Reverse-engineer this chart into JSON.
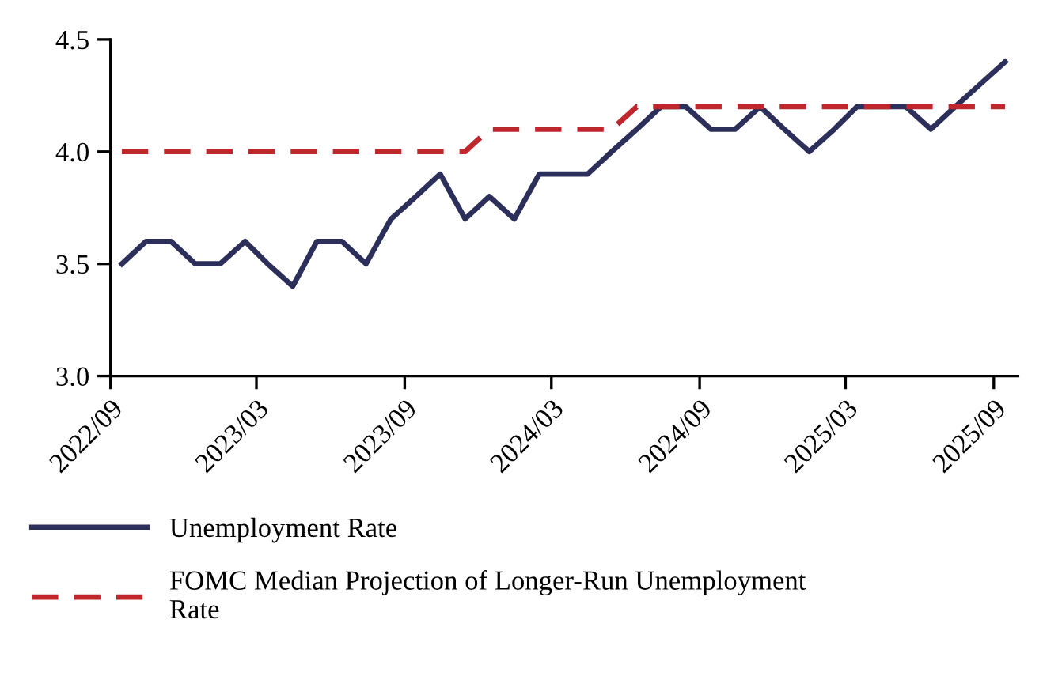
{
  "chart_data": {
    "type": "line",
    "x": [
      "2022-09-15",
      "2022-10-15",
      "2022-11-15",
      "2022-12-15",
      "2023-01-15",
      "2023-02-15",
      "2023-03-15",
      "2023-04-15",
      "2023-05-15",
      "2023-06-15",
      "2023-07-15",
      "2023-08-15",
      "2023-09-15",
      "2023-10-15",
      "2023-11-15",
      "2023-12-15",
      "2024-01-15",
      "2024-02-15",
      "2024-03-15",
      "2024-04-15",
      "2024-05-15",
      "2024-06-15",
      "2024-07-15",
      "2024-08-15",
      "2024-09-15",
      "2024-10-15",
      "2024-11-15",
      "2024-12-15",
      "2025-01-15",
      "2025-02-15",
      "2025-03-15",
      "2025-04-15",
      "2025-05-15",
      "2025-06-15",
      "2025-07-15",
      "2025-08-15",
      "2025-09-15"
    ],
    "series": [
      {
        "name": "Unemployment Rate",
        "color": "#2b2f5a",
        "line_style": "solid",
        "values": [
          3.5,
          3.6,
          3.6,
          3.5,
          3.5,
          3.6,
          3.5,
          3.4,
          3.6,
          3.6,
          3.5,
          3.7,
          3.8,
          3.9,
          3.7,
          3.8,
          3.7,
          3.9,
          3.9,
          3.9,
          4.0,
          4.1,
          4.2,
          4.2,
          4.1,
          4.1,
          4.2,
          4.1,
          4.0,
          4.1,
          4.2,
          4.2,
          4.2,
          4.1,
          4.2,
          4.3,
          4.4
        ]
      },
      {
        "name": "FOMC Median Projection of Longer-Run Unemployment\nRate",
        "color": "#c0272d",
        "line_style": "dashed",
        "values": [
          4.0,
          4.0,
          4.0,
          4.0,
          4.0,
          4.0,
          4.0,
          4.0,
          4.0,
          4.0,
          4.0,
          4.0,
          4.0,
          4.0,
          4.0,
          4.1,
          4.1,
          4.1,
          4.1,
          4.1,
          4.1,
          4.2,
          4.2,
          4.2,
          4.2,
          4.2,
          4.2,
          4.2,
          4.2,
          4.2,
          4.2,
          4.2,
          4.2,
          4.2,
          4.2,
          4.2,
          4.2
        ]
      }
    ],
    "xlim": [
      "2022-09-01",
      "2025-10-01"
    ],
    "xticks": [
      {
        "value": "2022-09-01",
        "label": "2022/09"
      },
      {
        "value": "2023-03-01",
        "label": "2023/03"
      },
      {
        "value": "2023-09-01",
        "label": "2023/09"
      },
      {
        "value": "2024-03-01",
        "label": "2024/03"
      },
      {
        "value": "2024-09-01",
        "label": "2024/09"
      },
      {
        "value": "2025-03-01",
        "label": "2025/03"
      },
      {
        "value": "2025-09-01",
        "label": "2025/09"
      }
    ],
    "ylim": [
      3.0,
      4.5
    ],
    "yticks": [
      {
        "value": 3.0,
        "label": "3.0"
      },
      {
        "value": 3.5,
        "label": "3.5"
      },
      {
        "value": 4.0,
        "label": "4.0"
      },
      {
        "value": 4.5,
        "label": "4.5"
      }
    ],
    "grid": false,
    "legend": "bottom",
    "marker": "none"
  }
}
